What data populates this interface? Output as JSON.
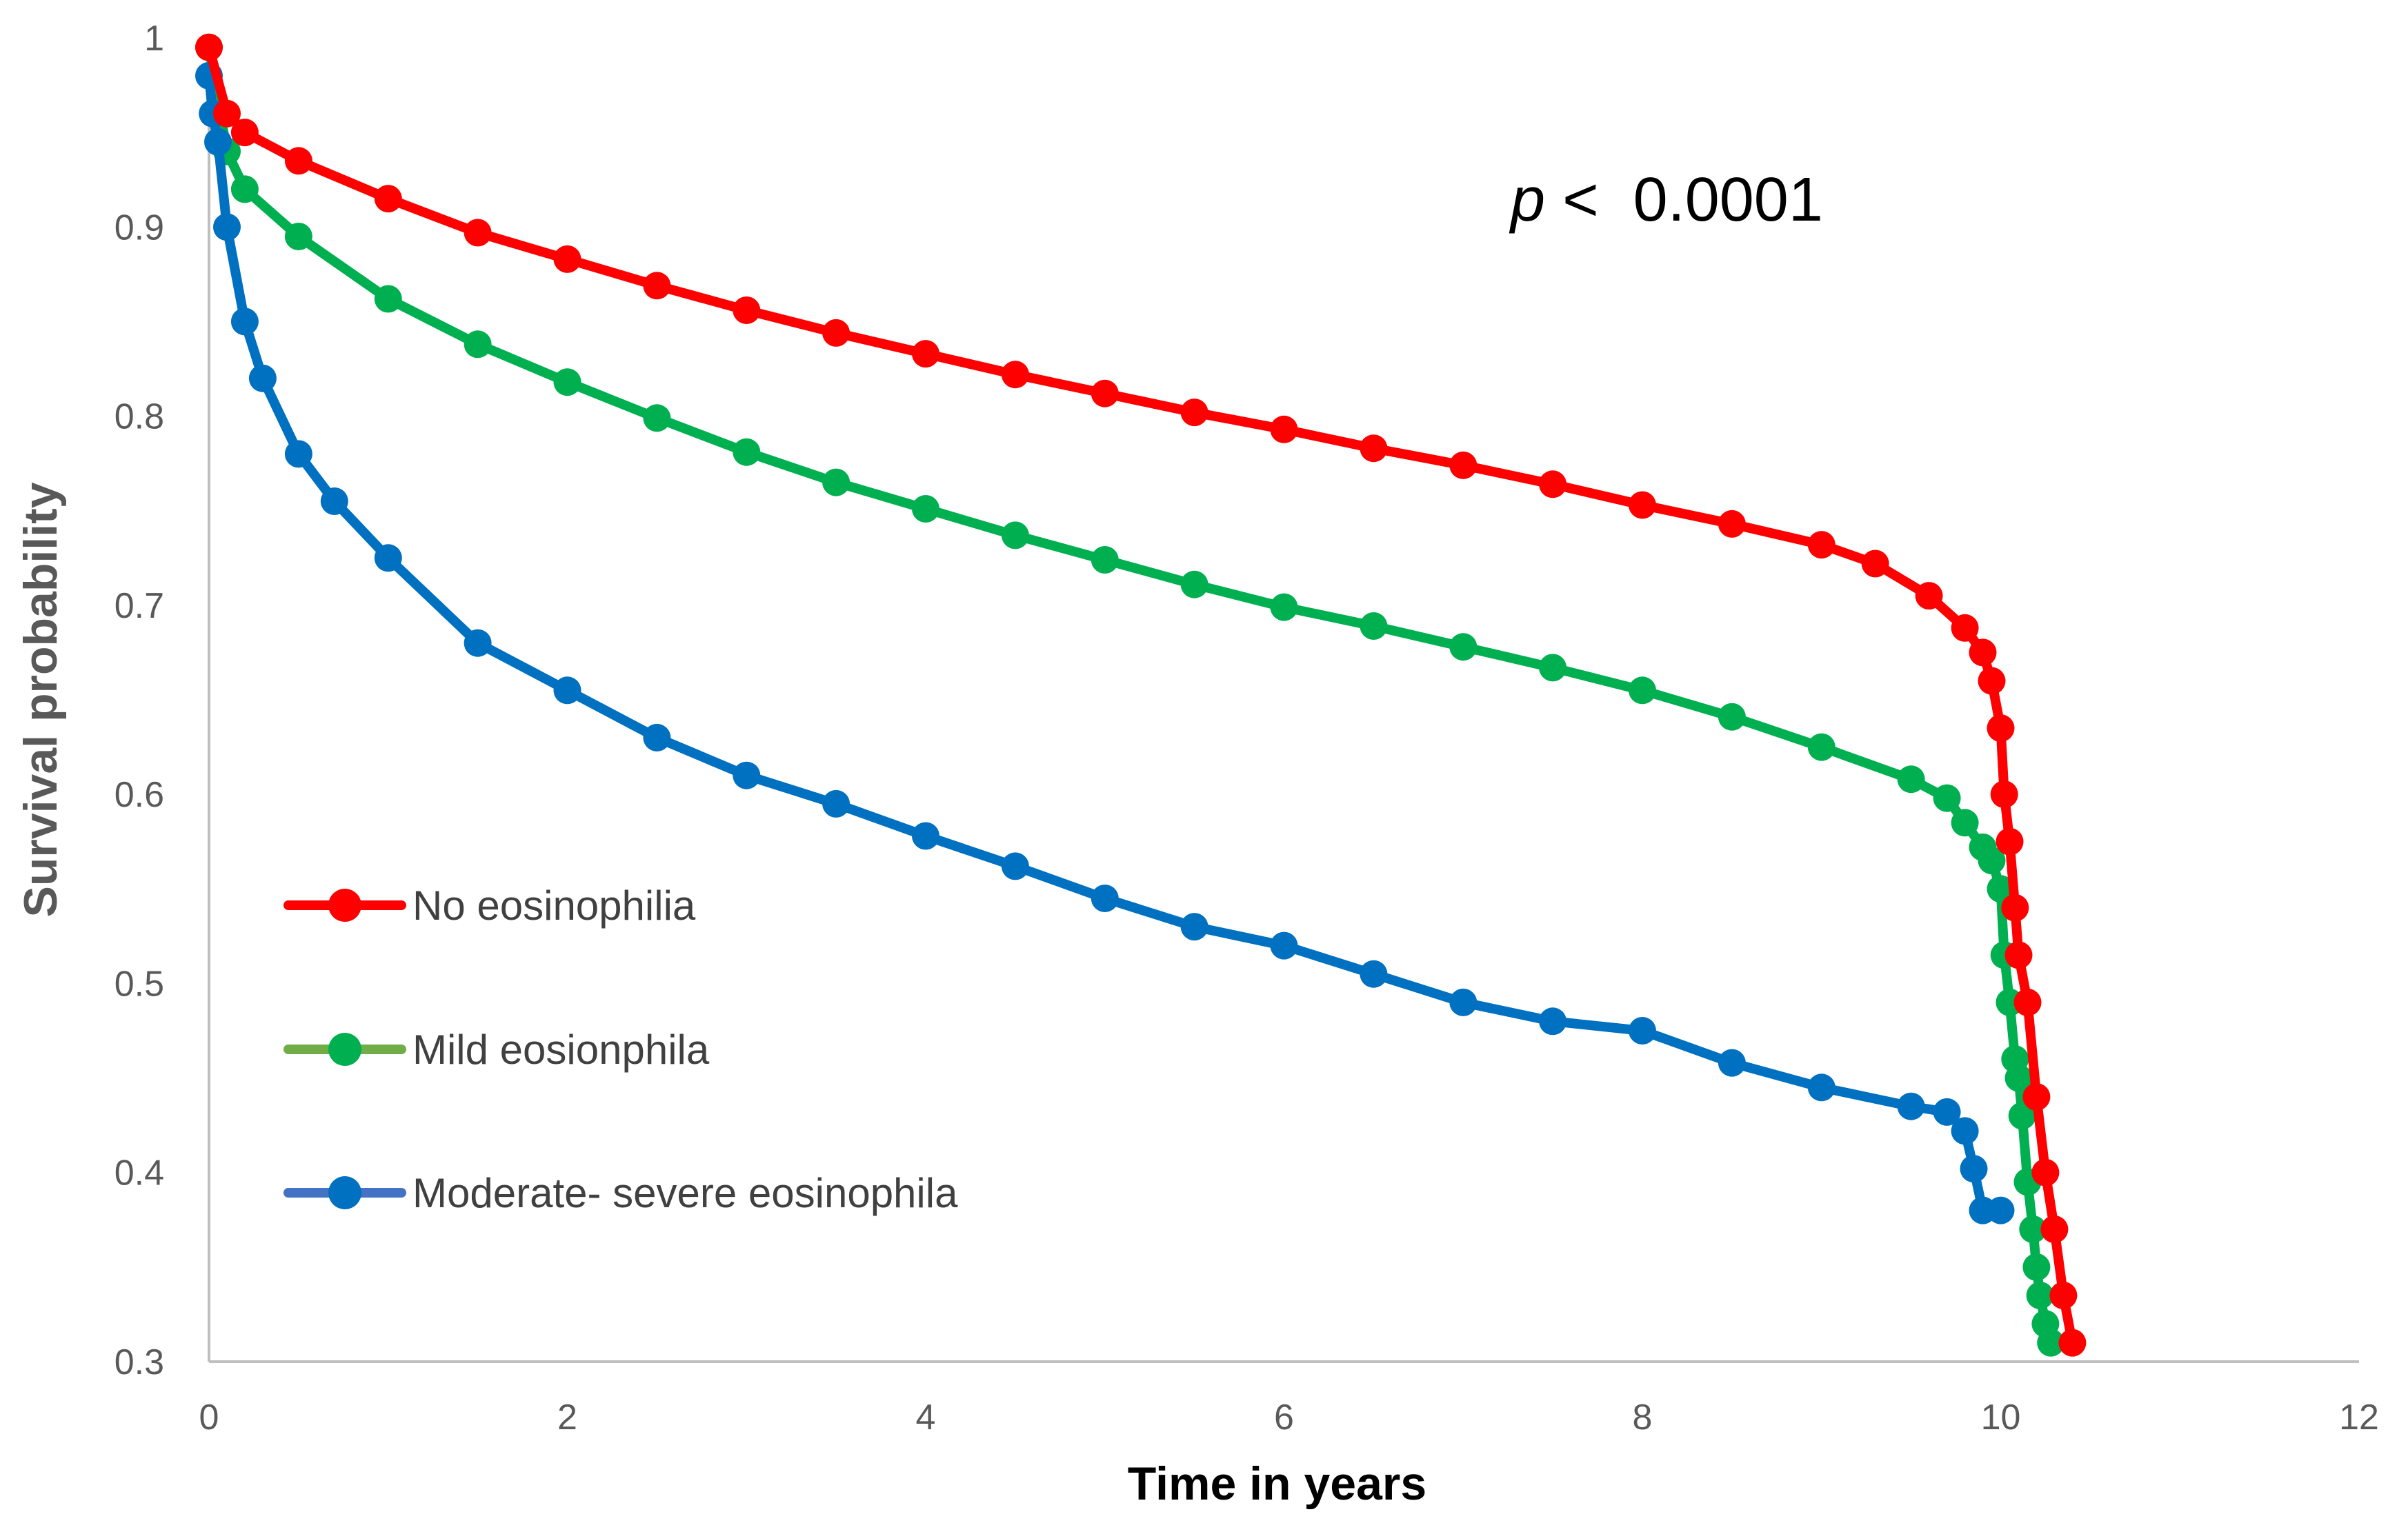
{
  "chart_data": {
    "type": "line",
    "title": "",
    "xlabel": "Time in years",
    "ylabel": "Survival probability",
    "xlim": [
      0,
      12
    ],
    "ylim": [
      0.3,
      1
    ],
    "x_ticks": [
      0,
      2,
      4,
      6,
      8,
      10,
      12
    ],
    "y_ticks": [
      0.3,
      0.4,
      0.5,
      0.6,
      0.7,
      0.8,
      0.9,
      1
    ],
    "y_tick_labels": [
      "0.3",
      "0.4",
      "0.5",
      "0.6",
      "0.7",
      "0.8",
      "0.9",
      "1"
    ],
    "grid": false,
    "legend_position": "left",
    "annotation": {
      "italic": "p",
      "rest": " <  0.0001"
    },
    "series": [
      {
        "name": "No eosinophilia",
        "color": "#ff0000",
        "x": [
          0,
          0.1,
          0.2,
          0.5,
          1,
          1.5,
          2,
          2.5,
          3,
          3.5,
          4,
          4.5,
          5,
          5.5,
          6,
          6.5,
          7,
          7.5,
          8,
          8.5,
          9,
          9.3,
          9.6,
          9.8,
          9.9,
          9.95,
          10.0,
          10.02,
          10.05,
          10.08,
          10.1,
          10.15,
          10.2,
          10.25,
          10.3,
          10.35,
          10.4
        ],
        "y": [
          0.995,
          0.96,
          0.95,
          0.935,
          0.915,
          0.897,
          0.883,
          0.869,
          0.856,
          0.844,
          0.833,
          0.822,
          0.812,
          0.802,
          0.793,
          0.783,
          0.774,
          0.764,
          0.753,
          0.743,
          0.732,
          0.722,
          0.705,
          0.688,
          0.675,
          0.66,
          0.635,
          0.6,
          0.575,
          0.54,
          0.515,
          0.49,
          0.44,
          0.4,
          0.37,
          0.335,
          0.31
        ]
      },
      {
        "name": "Mild eosionphila",
        "color": "#00b050",
        "x": [
          0,
          0.1,
          0.2,
          0.5,
          1,
          1.5,
          2,
          2.5,
          3,
          3.5,
          4,
          4.5,
          5,
          5.5,
          6,
          6.5,
          7,
          7.5,
          8,
          8.5,
          9,
          9.5,
          9.7,
          9.8,
          9.9,
          9.95,
          10.0,
          10.02,
          10.05,
          10.08,
          10.1,
          10.12,
          10.15,
          10.18,
          10.2,
          10.22,
          10.25,
          10.28
        ],
        "y": [
          0.995,
          0.94,
          0.92,
          0.895,
          0.862,
          0.838,
          0.818,
          0.799,
          0.781,
          0.765,
          0.751,
          0.737,
          0.724,
          0.711,
          0.699,
          0.689,
          0.678,
          0.667,
          0.655,
          0.641,
          0.625,
          0.608,
          0.598,
          0.585,
          0.572,
          0.565,
          0.55,
          0.515,
          0.49,
          0.46,
          0.45,
          0.43,
          0.395,
          0.37,
          0.35,
          0.335,
          0.32,
          0.31
        ]
      },
      {
        "name": "Moderate- severe eosinophila",
        "color": "#0070c0",
        "x": [
          0,
          0.02,
          0.05,
          0.1,
          0.2,
          0.3,
          0.5,
          0.7,
          1,
          1.5,
          2,
          2.5,
          3,
          3.5,
          4,
          4.5,
          5,
          5.5,
          6,
          6.5,
          7,
          7.5,
          8,
          8.5,
          9,
          9.5,
          9.7,
          9.8,
          9.85,
          9.9,
          10.0
        ],
        "y": [
          0.98,
          0.96,
          0.945,
          0.9,
          0.85,
          0.82,
          0.78,
          0.755,
          0.725,
          0.68,
          0.655,
          0.63,
          0.61,
          0.595,
          0.578,
          0.562,
          0.545,
          0.53,
          0.52,
          0.505,
          0.49,
          0.48,
          0.475,
          0.458,
          0.445,
          0.435,
          0.432,
          0.422,
          0.402,
          0.38,
          0.38
        ]
      }
    ]
  }
}
